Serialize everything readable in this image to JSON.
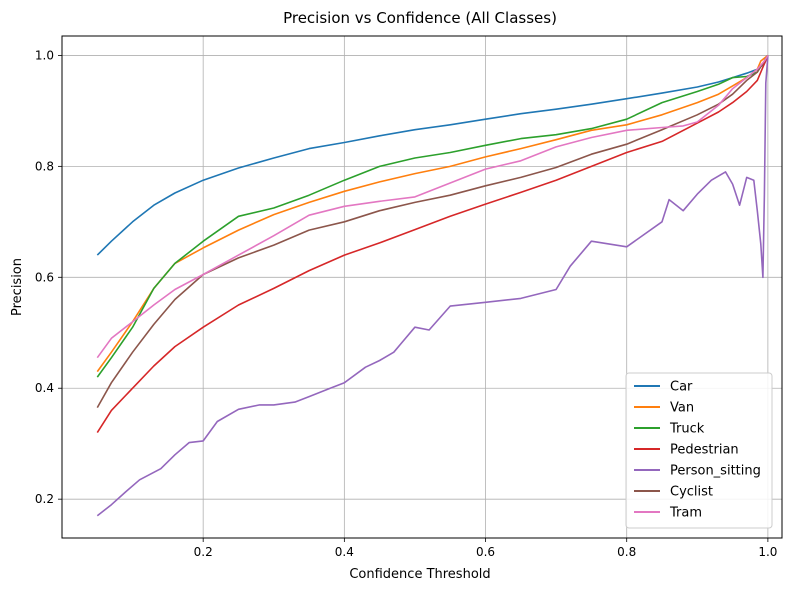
{
  "chart_data": {
    "type": "line",
    "title": "Precision vs Confidence (All Classes)",
    "xlabel": "Confidence Threshold",
    "ylabel": "Precision",
    "xlim": [
      0.0,
      1.02
    ],
    "ylim": [
      0.13,
      1.035
    ],
    "xticks": [
      0.2,
      0.4,
      0.6,
      0.8,
      1.0
    ],
    "xtick_labels": [
      "0.2",
      "0.4",
      "0.6",
      "0.8",
      "1.0"
    ],
    "yticks": [
      0.2,
      0.4,
      0.6,
      0.8,
      1.0
    ],
    "ytick_labels": [
      "0.2",
      "0.4",
      "0.6",
      "0.8",
      "1.0"
    ],
    "grid": true,
    "legend_position": "lower-right",
    "series": [
      {
        "name": "Car",
        "color": "#1f77b4",
        "points": [
          [
            0.05,
            0.64
          ],
          [
            0.07,
            0.665
          ],
          [
            0.1,
            0.7
          ],
          [
            0.13,
            0.73
          ],
          [
            0.16,
            0.752
          ],
          [
            0.2,
            0.775
          ],
          [
            0.25,
            0.797
          ],
          [
            0.3,
            0.815
          ],
          [
            0.35,
            0.832
          ],
          [
            0.4,
            0.843
          ],
          [
            0.45,
            0.855
          ],
          [
            0.5,
            0.866
          ],
          [
            0.55,
            0.875
          ],
          [
            0.6,
            0.885
          ],
          [
            0.65,
            0.895
          ],
          [
            0.7,
            0.903
          ],
          [
            0.75,
            0.912
          ],
          [
            0.8,
            0.922
          ],
          [
            0.85,
            0.932
          ],
          [
            0.9,
            0.943
          ],
          [
            0.93,
            0.952
          ],
          [
            0.95,
            0.96
          ],
          [
            0.97,
            0.968
          ],
          [
            0.985,
            0.975
          ],
          [
            0.995,
            0.985
          ],
          [
            1.0,
            1.0
          ]
        ]
      },
      {
        "name": "Van",
        "color": "#ff7f0e",
        "points": [
          [
            0.05,
            0.43
          ],
          [
            0.07,
            0.465
          ],
          [
            0.1,
            0.52
          ],
          [
            0.13,
            0.58
          ],
          [
            0.16,
            0.625
          ],
          [
            0.2,
            0.653
          ],
          [
            0.25,
            0.685
          ],
          [
            0.3,
            0.713
          ],
          [
            0.35,
            0.735
          ],
          [
            0.4,
            0.755
          ],
          [
            0.45,
            0.772
          ],
          [
            0.5,
            0.787
          ],
          [
            0.55,
            0.8
          ],
          [
            0.6,
            0.817
          ],
          [
            0.65,
            0.832
          ],
          [
            0.7,
            0.848
          ],
          [
            0.75,
            0.865
          ],
          [
            0.8,
            0.875
          ],
          [
            0.85,
            0.893
          ],
          [
            0.9,
            0.915
          ],
          [
            0.93,
            0.93
          ],
          [
            0.95,
            0.945
          ],
          [
            0.97,
            0.96
          ],
          [
            0.985,
            0.975
          ],
          [
            0.99,
            0.99
          ],
          [
            1.0,
            1.0
          ]
        ]
      },
      {
        "name": "Truck",
        "color": "#2ca02c",
        "points": [
          [
            0.05,
            0.42
          ],
          [
            0.07,
            0.455
          ],
          [
            0.1,
            0.51
          ],
          [
            0.13,
            0.58
          ],
          [
            0.16,
            0.625
          ],
          [
            0.2,
            0.665
          ],
          [
            0.25,
            0.71
          ],
          [
            0.3,
            0.725
          ],
          [
            0.35,
            0.748
          ],
          [
            0.4,
            0.775
          ],
          [
            0.45,
            0.8
          ],
          [
            0.5,
            0.815
          ],
          [
            0.55,
            0.825
          ],
          [
            0.6,
            0.838
          ],
          [
            0.65,
            0.85
          ],
          [
            0.7,
            0.857
          ],
          [
            0.75,
            0.868
          ],
          [
            0.8,
            0.885
          ],
          [
            0.85,
            0.915
          ],
          [
            0.9,
            0.935
          ],
          [
            0.93,
            0.948
          ],
          [
            0.95,
            0.96
          ],
          [
            0.97,
            0.962
          ],
          [
            0.985,
            0.97
          ],
          [
            0.995,
            0.99
          ],
          [
            1.0,
            1.0
          ]
        ]
      },
      {
        "name": "Pedestrian",
        "color": "#d62728",
        "points": [
          [
            0.05,
            0.32
          ],
          [
            0.07,
            0.36
          ],
          [
            0.1,
            0.4
          ],
          [
            0.13,
            0.44
          ],
          [
            0.16,
            0.475
          ],
          [
            0.2,
            0.51
          ],
          [
            0.25,
            0.55
          ],
          [
            0.3,
            0.58
          ],
          [
            0.35,
            0.612
          ],
          [
            0.4,
            0.64
          ],
          [
            0.45,
            0.662
          ],
          [
            0.5,
            0.686
          ],
          [
            0.55,
            0.71
          ],
          [
            0.6,
            0.732
          ],
          [
            0.65,
            0.753
          ],
          [
            0.7,
            0.775
          ],
          [
            0.75,
            0.8
          ],
          [
            0.8,
            0.825
          ],
          [
            0.85,
            0.845
          ],
          [
            0.9,
            0.878
          ],
          [
            0.93,
            0.898
          ],
          [
            0.95,
            0.915
          ],
          [
            0.97,
            0.935
          ],
          [
            0.985,
            0.955
          ],
          [
            0.995,
            0.985
          ],
          [
            1.0,
            1.0
          ]
        ]
      },
      {
        "name": "Person_sitting",
        "color": "#9467bd",
        "points": [
          [
            0.05,
            0.17
          ],
          [
            0.07,
            0.19
          ],
          [
            0.09,
            0.213
          ],
          [
            0.11,
            0.235
          ],
          [
            0.14,
            0.255
          ],
          [
            0.16,
            0.28
          ],
          [
            0.18,
            0.302
          ],
          [
            0.2,
            0.305
          ],
          [
            0.22,
            0.34
          ],
          [
            0.25,
            0.362
          ],
          [
            0.28,
            0.37
          ],
          [
            0.3,
            0.37
          ],
          [
            0.33,
            0.375
          ],
          [
            0.35,
            0.385
          ],
          [
            0.38,
            0.4
          ],
          [
            0.4,
            0.41
          ],
          [
            0.43,
            0.438
          ],
          [
            0.45,
            0.45
          ],
          [
            0.47,
            0.465
          ],
          [
            0.48,
            0.48
          ],
          [
            0.5,
            0.51
          ],
          [
            0.52,
            0.505
          ],
          [
            0.55,
            0.548
          ],
          [
            0.6,
            0.555
          ],
          [
            0.65,
            0.562
          ],
          [
            0.7,
            0.578
          ],
          [
            0.72,
            0.62
          ],
          [
            0.75,
            0.665
          ],
          [
            0.8,
            0.655
          ],
          [
            0.85,
            0.7
          ],
          [
            0.86,
            0.74
          ],
          [
            0.88,
            0.72
          ],
          [
            0.9,
            0.75
          ],
          [
            0.92,
            0.775
          ],
          [
            0.94,
            0.79
          ],
          [
            0.95,
            0.768
          ],
          [
            0.96,
            0.73
          ],
          [
            0.97,
            0.78
          ],
          [
            0.98,
            0.775
          ],
          [
            0.985,
            0.72
          ],
          [
            0.99,
            0.66
          ],
          [
            0.993,
            0.6
          ],
          [
            0.995,
            0.75
          ],
          [
            0.997,
            0.95
          ],
          [
            1.0,
            1.0
          ]
        ]
      },
      {
        "name": "Cyclist",
        "color": "#8c564b",
        "points": [
          [
            0.05,
            0.365
          ],
          [
            0.07,
            0.41
          ],
          [
            0.1,
            0.465
          ],
          [
            0.13,
            0.515
          ],
          [
            0.16,
            0.56
          ],
          [
            0.2,
            0.605
          ],
          [
            0.25,
            0.635
          ],
          [
            0.3,
            0.658
          ],
          [
            0.35,
            0.685
          ],
          [
            0.4,
            0.7
          ],
          [
            0.45,
            0.72
          ],
          [
            0.5,
            0.735
          ],
          [
            0.55,
            0.748
          ],
          [
            0.6,
            0.765
          ],
          [
            0.65,
            0.78
          ],
          [
            0.7,
            0.798
          ],
          [
            0.75,
            0.822
          ],
          [
            0.8,
            0.84
          ],
          [
            0.85,
            0.866
          ],
          [
            0.9,
            0.893
          ],
          [
            0.93,
            0.912
          ],
          [
            0.95,
            0.93
          ],
          [
            0.97,
            0.955
          ],
          [
            0.985,
            0.97
          ],
          [
            0.995,
            0.99
          ],
          [
            1.0,
            1.0
          ]
        ]
      },
      {
        "name": "Tram",
        "color": "#e377c2",
        "points": [
          [
            0.05,
            0.455
          ],
          [
            0.07,
            0.49
          ],
          [
            0.1,
            0.52
          ],
          [
            0.13,
            0.55
          ],
          [
            0.16,
            0.578
          ],
          [
            0.2,
            0.605
          ],
          [
            0.25,
            0.64
          ],
          [
            0.3,
            0.675
          ],
          [
            0.35,
            0.712
          ],
          [
            0.4,
            0.728
          ],
          [
            0.45,
            0.737
          ],
          [
            0.5,
            0.745
          ],
          [
            0.55,
            0.77
          ],
          [
            0.6,
            0.795
          ],
          [
            0.65,
            0.81
          ],
          [
            0.7,
            0.835
          ],
          [
            0.75,
            0.852
          ],
          [
            0.8,
            0.865
          ],
          [
            0.85,
            0.87
          ],
          [
            0.88,
            0.873
          ],
          [
            0.9,
            0.88
          ],
          [
            0.93,
            0.91
          ],
          [
            0.95,
            0.94
          ],
          [
            0.97,
            0.96
          ],
          [
            0.985,
            0.975
          ],
          [
            0.995,
            0.99
          ],
          [
            1.0,
            1.0
          ]
        ]
      }
    ]
  }
}
